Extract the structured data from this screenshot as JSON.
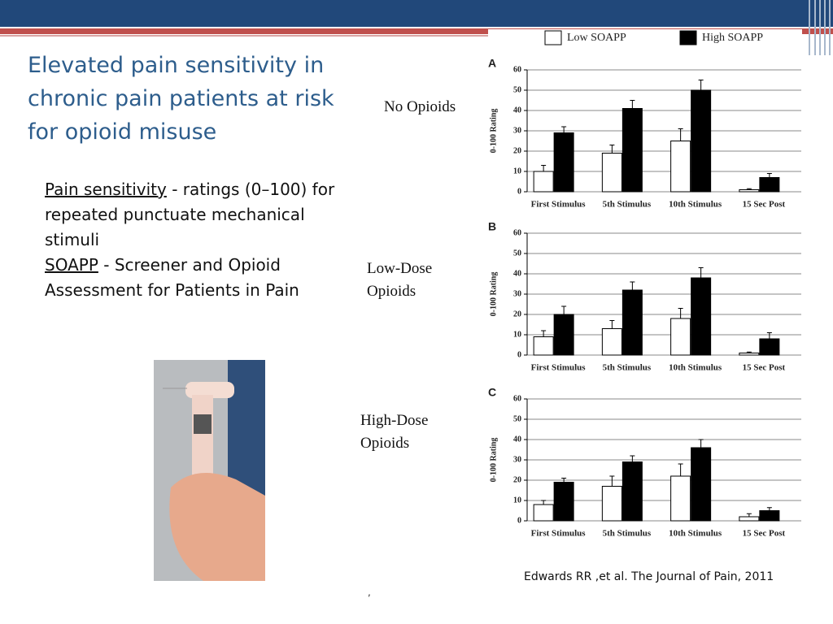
{
  "slide": {
    "title": "Elevated pain sensitivity in chronic pain patients at risk for opioid misuse",
    "body": [
      {
        "term": "Pain sensitivity",
        "text": " - ratings (0–100) for repeated punctuate mechanical stimuli"
      },
      {
        "term": "SOAPP",
        "text": " - Screener and Opioid Assessment for Patients in Pain"
      }
    ],
    "citation": "Edwards RR ,et al. The Journal of Pain, 2011",
    "footnote": ","
  },
  "chart_data": [
    {
      "type": "bar",
      "title": "A",
      "subtitle": "No Opioids",
      "ylabel": "0-100 Rating",
      "categories": [
        "First Stimulus",
        "5th Stimulus",
        "10th Stimulus",
        "15 Sec Post"
      ],
      "series": [
        {
          "name": "Low SOAPP",
          "color": "#ffffff",
          "values": [
            10,
            19,
            25,
            1
          ],
          "errors": [
            3,
            4,
            6,
            0.5
          ]
        },
        {
          "name": "High SOAPP",
          "color": "#000000",
          "values": [
            29,
            41,
            50,
            7
          ],
          "errors": [
            3,
            4,
            5,
            2
          ]
        }
      ],
      "ylim": [
        0,
        60
      ],
      "yticks": [
        0,
        10,
        20,
        30,
        40,
        50,
        60
      ],
      "grid": true
    },
    {
      "type": "bar",
      "title": "B",
      "subtitle": "Low-Dose Opioids",
      "ylabel": "0-100 Rating",
      "categories": [
        "First Stimulus",
        "5th Stimulus",
        "10th Stimulus",
        "15 Sec Post"
      ],
      "series": [
        {
          "name": "Low SOAPP",
          "color": "#ffffff",
          "values": [
            9,
            13,
            18,
            1
          ],
          "errors": [
            3,
            4,
            5,
            0.5
          ]
        },
        {
          "name": "High SOAPP",
          "color": "#000000",
          "values": [
            20,
            32,
            38,
            8
          ],
          "errors": [
            4,
            4,
            5,
            3
          ]
        }
      ],
      "ylim": [
        0,
        60
      ],
      "yticks": [
        0,
        10,
        20,
        30,
        40,
        50,
        60
      ],
      "grid": true
    },
    {
      "type": "bar",
      "title": "C",
      "subtitle": "High-Dose Opioids",
      "ylabel": "0-100 Rating",
      "categories": [
        "First Stimulus",
        "5th Stimulus",
        "10th Stimulus",
        "15 Sec Post"
      ],
      "series": [
        {
          "name": "Low SOAPP",
          "color": "#ffffff",
          "values": [
            8,
            17,
            22,
            2
          ],
          "errors": [
            2,
            5,
            6,
            1.5
          ]
        },
        {
          "name": "High SOAPP",
          "color": "#000000",
          "values": [
            19,
            29,
            36,
            5
          ],
          "errors": [
            2,
            3,
            4,
            1.5
          ]
        }
      ],
      "ylim": [
        0,
        60
      ],
      "yticks": [
        0,
        10,
        20,
        30,
        40,
        50,
        60
      ],
      "grid": true
    }
  ]
}
